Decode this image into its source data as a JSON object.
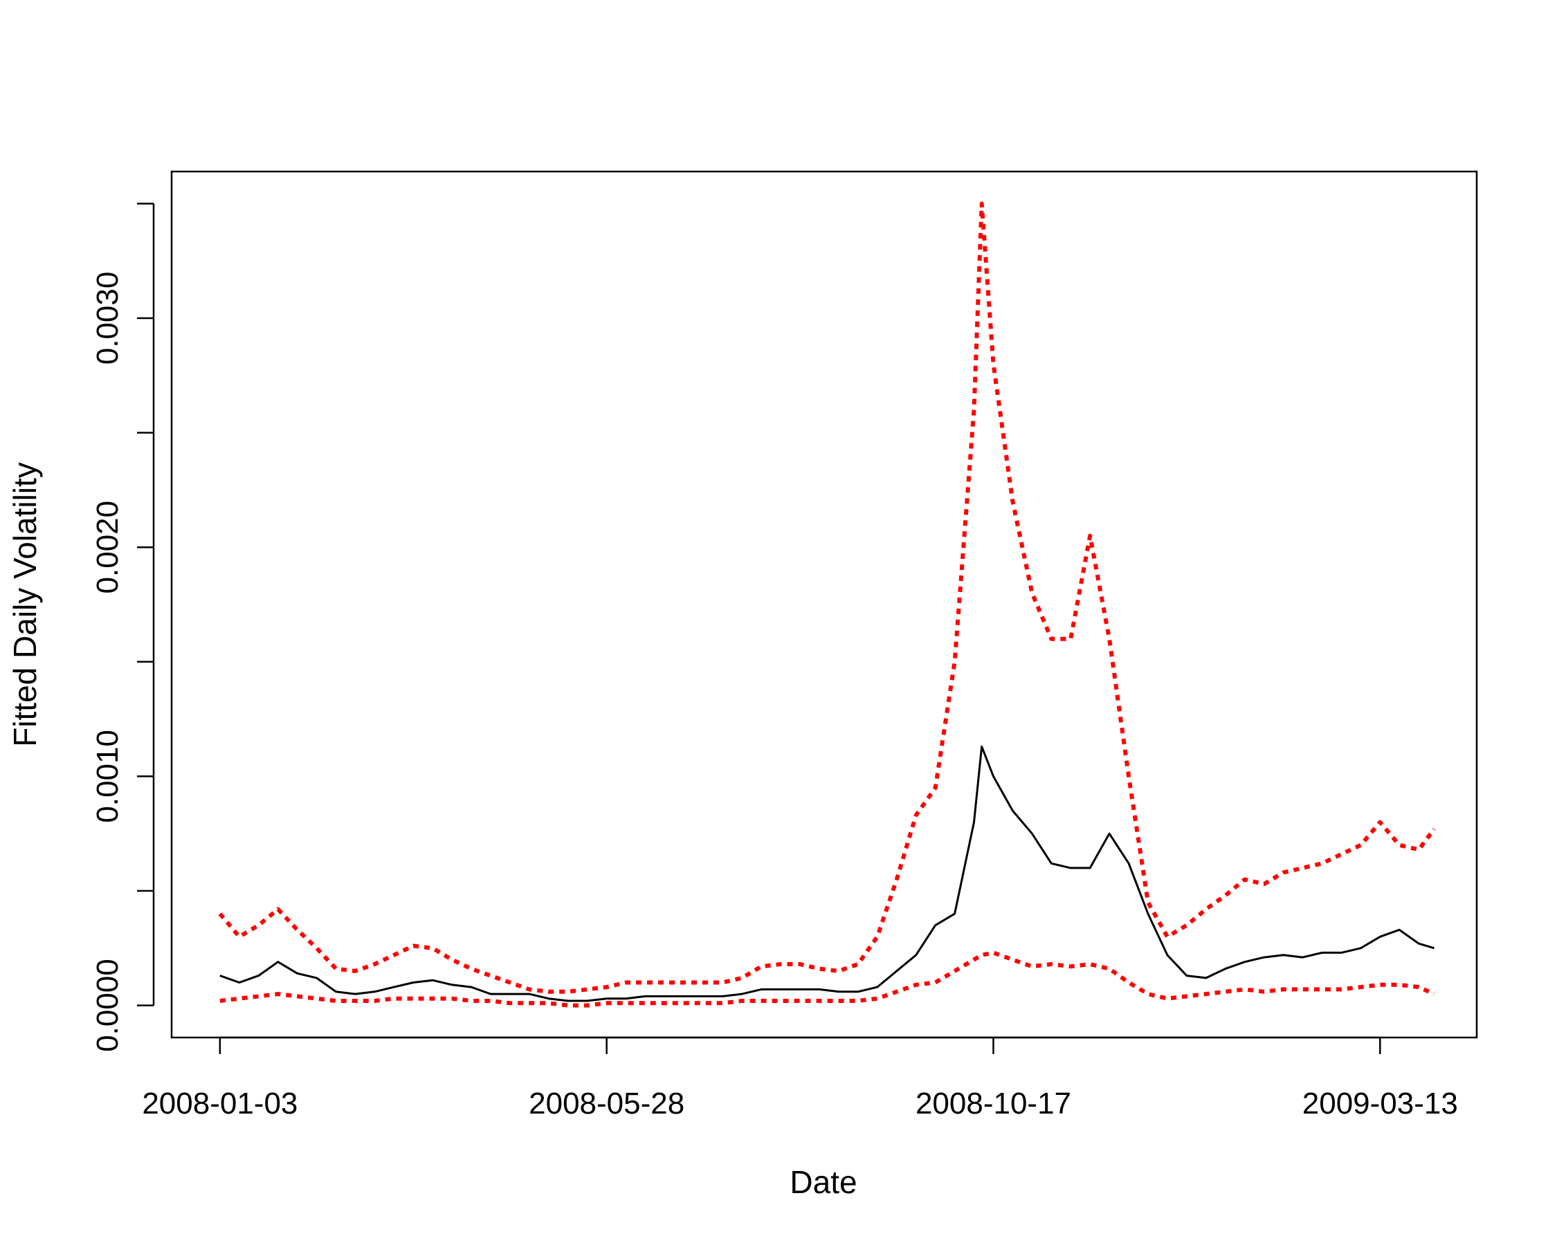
{
  "chart_data": {
    "type": "line",
    "title": "",
    "xlabel": "Date",
    "ylabel": "Fitted Daily Volatility",
    "x_ticks": [
      "2008-01-03",
      "2008-05-28",
      "2008-10-17",
      "2009-03-13"
    ],
    "x_ticks_index": [
      0,
      100,
      200,
      300
    ],
    "y_ticks": [
      0.0,
      0.0005,
      0.001,
      0.0015,
      0.002,
      0.0025,
      0.003,
      0.0035
    ],
    "y_tick_labels": [
      "0.0000",
      "",
      "0.0010",
      "",
      "0.0020",
      "",
      "0.0030",
      ""
    ],
    "ylim": [
      -0.00014,
      0.00364
    ],
    "xlim": [
      -12.5,
      325
    ],
    "grid": false,
    "x": [
      0,
      5,
      10,
      15,
      20,
      25,
      30,
      35,
      40,
      45,
      50,
      55,
      60,
      65,
      70,
      75,
      80,
      85,
      90,
      95,
      100,
      105,
      110,
      115,
      120,
      125,
      130,
      135,
      140,
      145,
      150,
      155,
      160,
      165,
      170,
      175,
      180,
      185,
      190,
      195,
      197,
      200,
      205,
      210,
      215,
      220,
      225,
      230,
      235,
      240,
      245,
      250,
      255,
      260,
      265,
      270,
      275,
      280,
      285,
      290,
      295,
      300,
      305,
      310,
      314
    ],
    "series": [
      {
        "style": "solid",
        "color": "#000000",
        "values": [
          0.00013,
          0.0001,
          0.00013,
          0.00019,
          0.00014,
          0.00012,
          6e-05,
          5e-05,
          6e-05,
          8e-05,
          0.0001,
          0.00011,
          9e-05,
          8e-05,
          5e-05,
          5e-05,
          5e-05,
          3e-05,
          2e-05,
          2e-05,
          3e-05,
          3e-05,
          4e-05,
          4e-05,
          4e-05,
          4e-05,
          4e-05,
          5e-05,
          7e-05,
          7e-05,
          7e-05,
          7e-05,
          6e-05,
          6e-05,
          8e-05,
          0.00015,
          0.00022,
          0.00035,
          0.0004,
          0.0008,
          0.00113,
          0.001,
          0.00085,
          0.00075,
          0.00062,
          0.0006,
          0.0006,
          0.00075,
          0.00062,
          0.0004,
          0.00022,
          0.00013,
          0.00012,
          0.00016,
          0.00019,
          0.00021,
          0.00022,
          0.00021,
          0.00023,
          0.00023,
          0.00025,
          0.0003,
          0.00033,
          0.00027,
          0.00025
        ]
      },
      {
        "style": "dotted",
        "color": "#ff0000",
        "values": [
          0.0004,
          0.0003,
          0.00035,
          0.00042,
          0.00033,
          0.00025,
          0.00016,
          0.00015,
          0.00018,
          0.00022,
          0.00026,
          0.00025,
          0.0002,
          0.00016,
          0.00013,
          0.0001,
          7e-05,
          6e-05,
          6e-05,
          7e-05,
          8e-05,
          0.0001,
          0.0001,
          0.0001,
          0.0001,
          0.0001,
          0.0001,
          0.00012,
          0.00017,
          0.00018,
          0.00018,
          0.00016,
          0.00015,
          0.00018,
          0.0003,
          0.00055,
          0.00083,
          0.00095,
          0.0015,
          0.0026,
          0.0035,
          0.0028,
          0.0022,
          0.0018,
          0.0016,
          0.0016,
          0.00205,
          0.0016,
          0.001,
          0.00045,
          0.0003,
          0.00035,
          0.00042,
          0.00048,
          0.00055,
          0.00053,
          0.00058,
          0.0006,
          0.00062,
          0.00066,
          0.0007,
          0.0008,
          0.0007,
          0.00068,
          0.00077
        ]
      },
      {
        "style": "dotted",
        "color": "#ff0000",
        "values": [
          2e-05,
          3e-05,
          4e-05,
          5e-05,
          4e-05,
          3e-05,
          2e-05,
          2e-05,
          2e-05,
          3e-05,
          3e-05,
          3e-05,
          3e-05,
          2e-05,
          2e-05,
          1e-05,
          1e-05,
          1e-05,
          0.0,
          0.0,
          1e-05,
          1e-05,
          1e-05,
          1e-05,
          1e-05,
          1e-05,
          1e-05,
          2e-05,
          2e-05,
          2e-05,
          2e-05,
          2e-05,
          2e-05,
          2e-05,
          3e-05,
          6e-05,
          9e-05,
          0.0001,
          0.00015,
          0.0002,
          0.00022,
          0.00023,
          0.0002,
          0.00017,
          0.00018,
          0.00017,
          0.00018,
          0.00016,
          0.0001,
          5e-05,
          3e-05,
          4e-05,
          5e-05,
          6e-05,
          7e-05,
          6e-05,
          7e-05,
          7e-05,
          7e-05,
          7e-05,
          8e-05,
          9e-05,
          9e-05,
          8e-05,
          5e-05
        ]
      }
    ]
  }
}
